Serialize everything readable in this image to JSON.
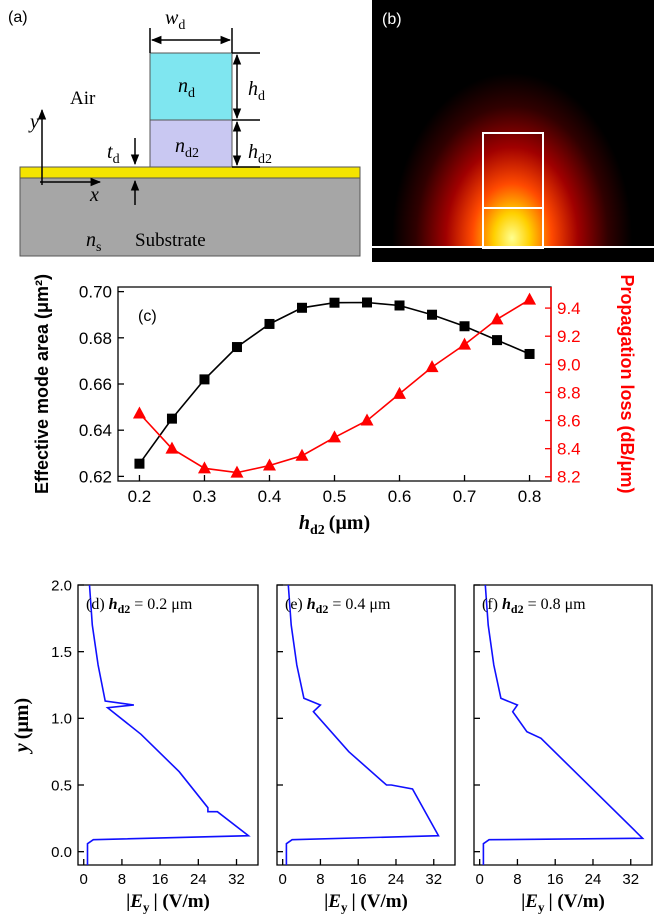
{
  "panel_a": {
    "label": "(a)",
    "medium": "Air",
    "substrate": "Substrate",
    "symbols": [
      {
        "main": "w",
        "sub": "d"
      },
      {
        "main": "n",
        "sub": "d"
      },
      {
        "main": "h",
        "sub": "d"
      },
      {
        "main": "n",
        "sub": "d2"
      },
      {
        "main": "h",
        "sub": "d2"
      },
      {
        "main": "t",
        "sub": "d"
      },
      {
        "main": "n",
        "sub": "s"
      },
      {
        "main": "y"
      },
      {
        "main": "x"
      }
    ]
  },
  "panel_b": {
    "label": "(b)"
  },
  "chart_data": [
    {
      "type": "line",
      "annotation": {
        "label": "(c)"
      },
      "xlabel": {
        "symbol": "h",
        "sub": "d2",
        "rest": "(μm)"
      },
      "ylabel": "Effective mode area (μm²)",
      "y2label": "Propagation loss (dB/μm)",
      "x": [
        0.2,
        0.25,
        0.3,
        0.35,
        0.4,
        0.45,
        0.5,
        0.55,
        0.6,
        0.65,
        0.7,
        0.75,
        0.8
      ],
      "series": [
        {
          "color": "#000000",
          "marker": "square",
          "values": [
            0.6255,
            0.645,
            0.662,
            0.676,
            0.686,
            0.693,
            0.6952,
            0.6953,
            0.694,
            0.69,
            0.685,
            0.679,
            0.673
          ]
        },
        {
          "color": "#ff0000",
          "marker": "triangle",
          "axis": "y2",
          "values": [
            8.65,
            8.4,
            8.26,
            8.23,
            8.28,
            8.35,
            8.48,
            8.6,
            8.79,
            8.98,
            9.14,
            9.32,
            9.46
          ]
        }
      ],
      "xlim": [
        0.167,
        0.833
      ],
      "xticks": [
        0.2,
        0.3,
        0.4,
        0.5,
        0.6,
        0.7,
        0.8
      ],
      "ylim": [
        0.618,
        0.702
      ],
      "yticks": [
        0.62,
        0.64,
        0.66,
        0.68,
        {
          "value": 0.7,
          "label": "0.70"
        }
      ],
      "y2lim": [
        8.17,
        9.55
      ],
      "y2ticks": [
        8.2,
        8.4,
        8.6,
        8.8,
        {
          "value": 9,
          "label": "9.0"
        },
        9.2,
        9.4
      ]
    },
    {
      "type": "line",
      "annotation": {
        "label": "(d)",
        "symbol": "h",
        "sub": "d2",
        "rest": "= 0.2 μm"
      },
      "xlabel": {
        "pre": "|",
        "symbol": "E",
        "sub": "y",
        "rest": "| (V/m)"
      },
      "ylabel": {
        "symbol": "y",
        "rest": "(μm)"
      },
      "color": "#1010ff",
      "show_ytick_labels": true,
      "x": [
        0.8,
        0.8,
        2,
        34.5,
        28,
        26,
        26,
        20,
        12,
        5,
        10.5,
        4.5,
        3,
        1.8,
        1.2
      ],
      "values": [
        -0.1,
        0.06,
        0.09,
        0.12,
        0.3,
        0.3,
        0.33,
        0.6,
        0.88,
        1.08,
        1.1,
        1.13,
        1.4,
        1.7,
        2.0
      ],
      "xlim": [
        -1.2,
        36.5
      ],
      "xticks": [
        0,
        8,
        16,
        24,
        32
      ],
      "ylim": [
        -0.1,
        2.0
      ],
      "yticks": [
        {
          "value": 0,
          "label": "0.0"
        },
        0.5,
        {
          "value": 1,
          "label": "1.0"
        },
        1.5,
        {
          "value": 2,
          "label": "2.0"
        }
      ]
    },
    {
      "type": "line",
      "annotation": {
        "label": "(e)",
        "symbol": "h",
        "sub": "d2",
        "rest": "= 0.4 μm"
      },
      "xlabel": {
        "pre": "|",
        "symbol": "E",
        "sub": "y",
        "rest": "| (V/m)"
      },
      "color": "#1010ff",
      "show_ytick_labels": false,
      "x": [
        0.8,
        0.8,
        2,
        33,
        27.5,
        23,
        22,
        14,
        6.5,
        8,
        4.5,
        3,
        1.8,
        1.2
      ],
      "values": [
        -0.1,
        0.06,
        0.09,
        0.12,
        0.47,
        0.5,
        0.5,
        0.75,
        1.05,
        1.1,
        1.15,
        1.4,
        1.7,
        2.0
      ],
      "xlim": [
        -1.2,
        36.5
      ],
      "xticks": [
        0,
        8,
        16,
        24,
        32
      ],
      "ylim": [
        -0.1,
        2.0
      ],
      "yticks": [
        0,
        0.5,
        1,
        1.5,
        2
      ]
    },
    {
      "type": "line",
      "annotation": {
        "label": "(f)",
        "symbol": "h",
        "sub": "d2",
        "rest": "= 0.8 μm"
      },
      "xlabel": {
        "pre": "|",
        "symbol": "E",
        "sub": "y",
        "rest": "| (V/m)"
      },
      "color": "#1010ff",
      "show_ytick_labels": false,
      "x": [
        0.8,
        0.8,
        2,
        34.5,
        13,
        10,
        7,
        8,
        4.5,
        3,
        1.8,
        1.2
      ],
      "values": [
        -0.1,
        0.06,
        0.09,
        0.1,
        0.85,
        0.9,
        1.05,
        1.1,
        1.15,
        1.4,
        1.7,
        2.0
      ],
      "xlim": [
        -1.2,
        36.5
      ],
      "xticks": [
        0,
        8,
        16,
        24,
        32
      ],
      "ylim": [
        -0.1,
        2.0
      ],
      "yticks": [
        0,
        0.5,
        1,
        1.5,
        2
      ]
    }
  ]
}
